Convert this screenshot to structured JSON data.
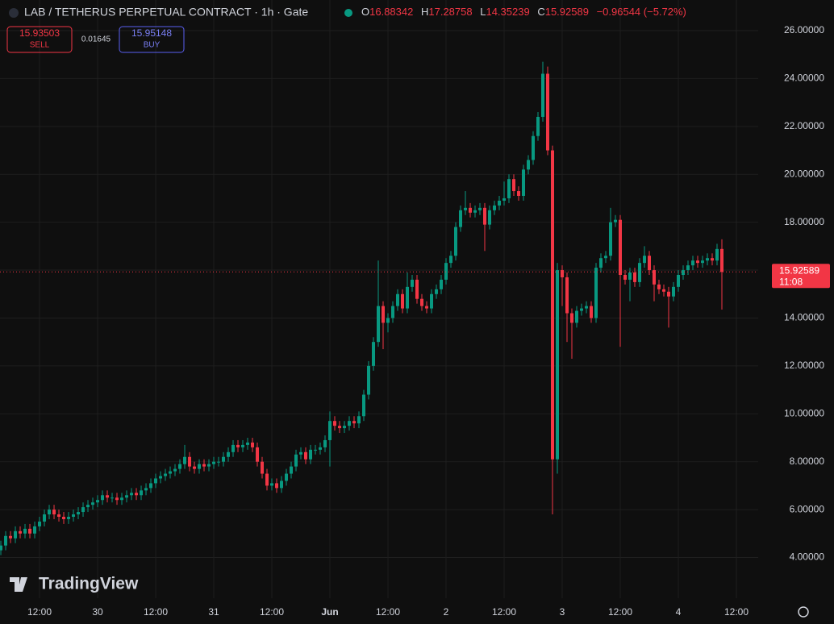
{
  "header": {
    "symbol": "LAB / TETHERUS PERPETUAL CONTRACT · 1h · Gate",
    "ohlc_labels": [
      "O",
      "H",
      "L",
      "C"
    ],
    "change": "−0.96544 (−5.72%)",
    "sell_price": "15.93503",
    "sell_label": "SELL",
    "spread": "0.01645",
    "buy_price": "15.95148",
    "buy_label": "BUY",
    "countdown": "11:08",
    "watermark": "TradingView"
  },
  "chart_data": {
    "type": "candlestick",
    "up_color": "#089981",
    "down_color": "#f23645",
    "grid": true,
    "open": [
      4.3,
      4.5,
      4.9,
      4.8,
      5.1,
      5.0,
      5.2,
      5.0,
      5.3,
      5.5,
      5.8,
      6.0,
      5.8,
      5.7,
      5.6,
      5.7,
      5.8,
      5.9,
      6.1,
      6.2,
      6.3,
      6.4,
      6.6,
      6.5,
      6.5,
      6.4,
      6.5,
      6.6,
      6.7,
      6.6,
      6.8,
      6.9,
      7.1,
      7.3,
      7.4,
      7.5,
      7.6,
      7.7,
      7.9,
      8.2,
      7.8,
      7.7,
      7.9,
      7.8,
      7.9,
      8.0,
      8.0,
      8.2,
      8.4,
      8.7,
      8.6,
      8.7,
      8.8,
      8.6,
      8.0,
      7.5,
      7.0,
      7.1,
      6.9,
      7.2,
      7.5,
      7.8,
      8.3,
      8.4,
      8.1,
      8.5,
      8.5,
      8.6,
      8.9,
      9.7,
      9.5,
      9.4,
      9.5,
      9.7,
      9.6,
      9.9,
      10.8,
      12.0,
      13.0,
      14.5,
      13.8,
      14.0,
      14.5,
      15.0,
      14.4,
      15.3,
      15.6,
      14.8,
      14.5,
      14.4,
      15.0,
      15.2,
      15.6,
      16.3,
      16.6,
      17.8,
      18.5,
      18.6,
      18.4,
      18.5,
      18.6,
      17.9,
      18.5,
      18.7,
      18.9,
      19.0,
      19.8,
      19.3,
      19.1,
      20.2,
      20.6,
      21.6,
      22.4,
      24.2,
      21.0,
      8.1,
      16.0,
      15.7,
      14.2,
      13.8,
      14.3,
      14.4,
      14.5,
      14.0,
      16.1,
      16.5,
      16.6,
      18.0,
      18.1,
      15.8,
      15.6,
      15.9,
      15.5,
      16.3,
      16.6,
      16.0,
      15.4,
      15.2,
      15.1,
      14.9,
      15.3,
      15.8,
      16.0,
      16.2,
      16.4,
      16.3,
      16.4,
      16.5,
      16.4,
      16.88342
    ],
    "high": [
      4.7,
      5.1,
      5.1,
      5.3,
      5.3,
      5.4,
      5.4,
      5.5,
      5.7,
      6.0,
      6.2,
      6.2,
      6.0,
      5.9,
      5.9,
      6.0,
      6.1,
      6.3,
      6.4,
      6.5,
      6.6,
      6.8,
      6.8,
      6.7,
      6.7,
      6.7,
      6.8,
      6.9,
      6.9,
      7.0,
      7.1,
      7.3,
      7.5,
      7.6,
      7.7,
      7.8,
      7.9,
      8.1,
      8.7,
      8.4,
      8.0,
      8.1,
      8.1,
      8.1,
      8.2,
      8.2,
      8.4,
      8.6,
      8.9,
      8.9,
      8.9,
      9.0,
      9.0,
      8.8,
      8.2,
      7.7,
      7.3,
      7.3,
      7.4,
      7.7,
      8.0,
      8.5,
      8.6,
      8.6,
      8.7,
      8.7,
      8.8,
      9.1,
      10.1,
      9.9,
      9.7,
      9.7,
      9.9,
      9.9,
      10.1,
      11.0,
      12.2,
      13.2,
      16.4,
      14.7,
      14.2,
      14.7,
      15.2,
      15.2,
      15.9,
      15.8,
      15.8,
      15.0,
      14.7,
      15.2,
      15.4,
      15.8,
      16.5,
      16.8,
      18.0,
      18.7,
      19.3,
      18.8,
      18.7,
      18.8,
      18.8,
      18.7,
      18.9,
      19.1,
      19.7,
      20.0,
      20.0,
      19.5,
      20.4,
      20.8,
      21.8,
      22.6,
      24.7,
      24.5,
      21.2,
      16.3,
      16.2,
      15.9,
      14.4,
      14.5,
      14.6,
      14.7,
      14.7,
      16.3,
      16.7,
      16.8,
      18.6,
      18.3,
      18.3,
      16.0,
      16.1,
      16.1,
      16.5,
      17.0,
      16.8,
      16.2,
      15.6,
      15.4,
      15.3,
      15.5,
      16.0,
      16.2,
      16.4,
      16.6,
      16.6,
      16.6,
      16.7,
      16.7,
      17.1,
      17.28758
    ],
    "low": [
      4.1,
      4.3,
      4.6,
      4.6,
      4.8,
      4.8,
      4.8,
      4.8,
      5.1,
      5.3,
      5.6,
      5.6,
      5.5,
      5.4,
      5.4,
      5.5,
      5.6,
      5.7,
      5.9,
      6.0,
      6.1,
      6.2,
      6.3,
      6.3,
      6.2,
      6.2,
      6.3,
      6.4,
      6.4,
      6.4,
      6.6,
      6.7,
      6.9,
      7.1,
      7.2,
      7.3,
      7.4,
      7.5,
      7.7,
      7.6,
      7.5,
      7.5,
      7.6,
      7.6,
      7.7,
      7.8,
      7.8,
      8.0,
      8.2,
      8.4,
      8.4,
      8.5,
      8.4,
      7.8,
      7.3,
      6.8,
      6.8,
      6.7,
      6.7,
      7.0,
      7.3,
      7.6,
      8.1,
      7.9,
      7.9,
      8.3,
      8.3,
      8.4,
      7.8,
      9.3,
      9.2,
      9.2,
      9.3,
      9.4,
      9.4,
      9.7,
      10.6,
      11.8,
      12.8,
      12.7,
      13.4,
      13.8,
      14.3,
      14.2,
      14.2,
      15.1,
      14.6,
      14.3,
      14.2,
      14.2,
      14.8,
      15.0,
      15.4,
      16.1,
      16.4,
      17.6,
      18.3,
      18.2,
      18.2,
      18.3,
      16.8,
      17.7,
      18.3,
      18.5,
      18.7,
      18.8,
      19.1,
      18.9,
      18.9,
      20.0,
      20.4,
      21.4,
      22.2,
      20.8,
      5.8,
      7.5,
      14.5,
      13.0,
      12.3,
      13.6,
      14.1,
      14.2,
      13.8,
      13.8,
      15.9,
      16.3,
      16.4,
      17.8,
      12.8,
      15.4,
      14.7,
      15.3,
      15.3,
      16.1,
      15.8,
      14.7,
      15.0,
      14.9,
      13.6,
      14.7,
      15.1,
      15.6,
      15.8,
      16.0,
      16.1,
      16.1,
      16.2,
      16.2,
      16.2,
      14.35239
    ],
    "close": [
      4.5,
      4.9,
      4.8,
      5.1,
      5.0,
      5.2,
      5.0,
      5.3,
      5.5,
      5.8,
      6.0,
      5.8,
      5.7,
      5.6,
      5.7,
      5.8,
      5.9,
      6.1,
      6.2,
      6.3,
      6.4,
      6.6,
      6.5,
      6.5,
      6.4,
      6.5,
      6.6,
      6.7,
      6.6,
      6.8,
      6.9,
      7.1,
      7.3,
      7.4,
      7.5,
      7.6,
      7.7,
      7.9,
      8.2,
      7.8,
      7.7,
      7.9,
      7.8,
      7.9,
      8.0,
      8.0,
      8.2,
      8.4,
      8.7,
      8.6,
      8.7,
      8.8,
      8.6,
      8.0,
      7.5,
      7.0,
      7.1,
      6.9,
      7.2,
      7.5,
      7.8,
      8.3,
      8.4,
      8.1,
      8.5,
      8.5,
      8.6,
      8.9,
      9.7,
      9.5,
      9.4,
      9.5,
      9.7,
      9.6,
      9.9,
      10.8,
      12.0,
      13.0,
      14.5,
      13.8,
      14.0,
      14.5,
      15.0,
      14.4,
      15.3,
      15.6,
      14.8,
      14.5,
      14.4,
      15.0,
      15.2,
      15.6,
      16.3,
      16.6,
      17.8,
      18.5,
      18.6,
      18.4,
      18.5,
      18.6,
      17.9,
      18.5,
      18.7,
      18.9,
      19.0,
      19.8,
      19.3,
      19.1,
      20.2,
      20.6,
      21.6,
      22.4,
      24.2,
      21.0,
      8.1,
      16.0,
      15.7,
      14.2,
      13.8,
      14.3,
      14.4,
      14.5,
      14.0,
      16.1,
      16.5,
      16.6,
      18.0,
      18.1,
      15.8,
      15.6,
      15.9,
      15.5,
      16.3,
      16.6,
      16.0,
      15.4,
      15.2,
      15.1,
      14.9,
      15.3,
      15.8,
      16.0,
      16.2,
      16.4,
      16.3,
      16.4,
      16.5,
      16.4,
      16.88342,
      15.92589
    ],
    "xlim": [
      -0.17,
      156.5
    ],
    "ylim": [
      2.3,
      27.28
    ],
    "xticks": [
      {
        "value": 8,
        "label": "12:00"
      },
      {
        "value": 20,
        "label": "30"
      },
      {
        "value": 32,
        "label": "12:00"
      },
      {
        "value": 44,
        "label": "31"
      },
      {
        "value": 56,
        "label": "12:00"
      },
      {
        "value": 68,
        "label": "Jun"
      },
      {
        "value": 80,
        "label": "12:00"
      },
      {
        "value": 92,
        "label": "2"
      },
      {
        "value": 104,
        "label": "12:00"
      },
      {
        "value": 116,
        "label": "3"
      },
      {
        "value": 128,
        "label": "12:00"
      },
      {
        "value": 140,
        "label": "4"
      },
      {
        "value": 152,
        "label": "12:00"
      }
    ],
    "yticks": [
      {
        "value": 4,
        "label": "4.00000"
      },
      {
        "value": 6,
        "label": "6.00000"
      },
      {
        "value": 8,
        "label": "8.00000"
      },
      {
        "value": 10,
        "label": "10.00000"
      },
      {
        "value": 12,
        "label": "12.00000"
      },
      {
        "value": 14,
        "label": "14.00000"
      },
      {
        "value": 16,
        "label": "16.00000"
      },
      {
        "value": 18,
        "label": "18.00000"
      },
      {
        "value": 20,
        "label": "20.00000"
      },
      {
        "value": 22,
        "label": "22.00000"
      },
      {
        "value": 24,
        "label": "24.00000"
      },
      {
        "value": 26,
        "label": "26.00000"
      }
    ]
  }
}
